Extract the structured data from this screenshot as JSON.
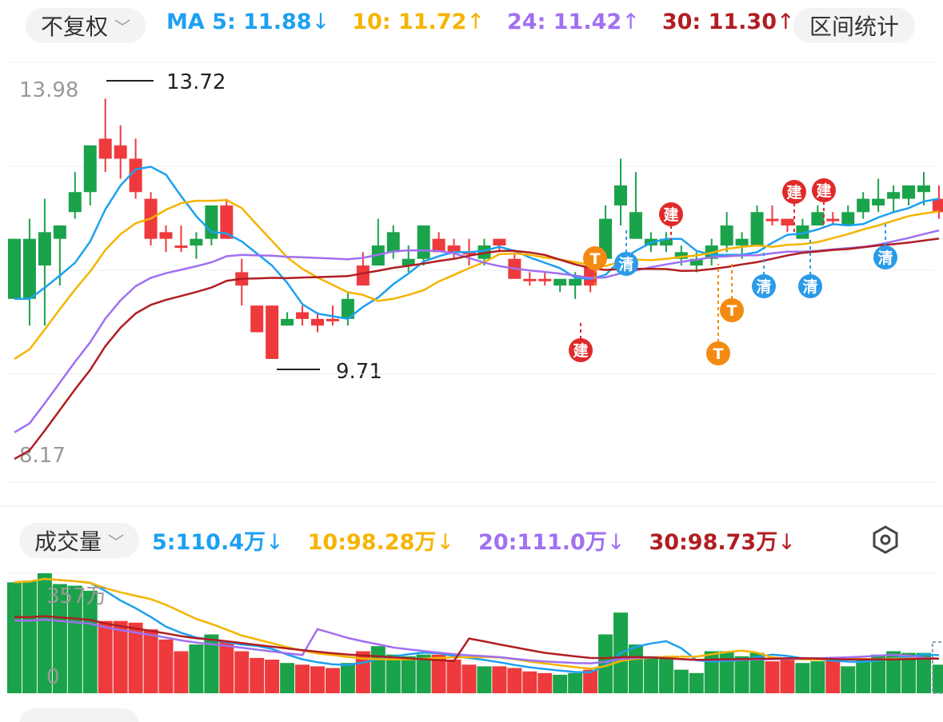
{
  "header": {
    "adjust_label": "不复权",
    "stats_label": "区间统计",
    "ma": [
      {
        "label": "MA 5: 11.88",
        "arrow": "↓",
        "color": "#1ea0f0"
      },
      {
        "label": "10: 11.72",
        "arrow": "↑",
        "color": "#f5b400"
      },
      {
        "label": "24: 11.42",
        "arrow": "↑",
        "color": "#a070f0"
      },
      {
        "label": "30: 11.30",
        "arrow": "↑",
        "color": "#b01e23"
      }
    ]
  },
  "price_chart": {
    "y_top": "13.98",
    "y_bottom": "8.17",
    "high_label": "13.72",
    "low_label": "9.71",
    "colors": {
      "up": "#ee3a3c",
      "down": "#1aa34a"
    },
    "markers": [
      {
        "type": "建",
        "color": "#e02a2a"
      },
      {
        "type": "清",
        "color": "#2b9be8"
      },
      {
        "type": "T",
        "color": "#f38a12"
      }
    ]
  },
  "volume_chart": {
    "label": "成交量",
    "y_top": "357万",
    "y_bottom": "0",
    "ma": [
      {
        "label": "5:110.4万",
        "arrow": "↓",
        "color": "#1ea0f0"
      },
      {
        "label": "10:98.28万",
        "arrow": "↓",
        "color": "#f5b400"
      },
      {
        "label": "20:111.0万",
        "arrow": "↓",
        "color": "#a070f0"
      },
      {
        "label": "30:98.73万",
        "arrow": "↓",
        "color": "#b01e23"
      }
    ]
  },
  "chart_data": {
    "type": "candlestick",
    "ylim": [
      8.17,
      13.98
    ],
    "candles": [
      [
        11.6,
        10.7,
        11.6,
        10.7
      ],
      [
        11.6,
        10.7,
        11.9,
        10.3
      ],
      [
        11.7,
        11.2,
        12.2,
        10.3
      ],
      [
        11.8,
        11.6,
        11.8,
        10.9
      ],
      [
        12.3,
        12.0,
        12.6,
        11.9
      ],
      [
        13.0,
        12.3,
        13.0,
        12.1
      ],
      [
        12.8,
        13.1,
        13.7,
        12.6
      ],
      [
        12.8,
        13.0,
        13.3,
        12.5
      ],
      [
        12.3,
        12.8,
        13.1,
        12.2
      ],
      [
        11.6,
        12.2,
        12.3,
        11.5
      ],
      [
        11.6,
        11.7,
        11.8,
        11.4
      ],
      [
        11.5,
        11.5,
        11.8,
        11.4
      ],
      [
        11.6,
        11.5,
        11.7,
        11.3
      ],
      [
        12.1,
        11.6,
        12.1,
        11.5
      ],
      [
        11.6,
        12.1,
        12.2,
        11.6
      ],
      [
        10.9,
        11.1,
        11.3,
        10.6
      ],
      [
        10.2,
        10.6,
        10.6,
        10.2
      ],
      [
        9.8,
        10.6,
        10.6,
        9.8
      ],
      [
        10.4,
        10.3,
        10.5,
        10.3
      ],
      [
        10.4,
        10.5,
        10.6,
        10.3
      ],
      [
        10.3,
        10.4,
        10.5,
        10.2
      ],
      [
        10.4,
        10.4,
        10.6,
        10.3
      ],
      [
        10.7,
        10.4,
        10.8,
        10.3
      ],
      [
        10.9,
        11.2,
        11.4,
        10.9
      ],
      [
        11.5,
        11.2,
        11.9,
        11.2
      ],
      [
        11.7,
        11.4,
        11.8,
        11.3
      ],
      [
        11.3,
        11.2,
        11.5,
        11.1
      ],
      [
        11.8,
        11.3,
        11.8,
        11.2
      ],
      [
        11.4,
        11.6,
        11.7,
        11.4
      ],
      [
        11.4,
        11.5,
        11.6,
        11.3
      ],
      [
        11.4,
        11.4,
        11.6,
        11.2
      ],
      [
        11.5,
        11.3,
        11.6,
        11.2
      ],
      [
        11.5,
        11.6,
        11.6,
        11.4
      ],
      [
        11.0,
        11.3,
        11.4,
        11.0
      ],
      [
        11.0,
        11.0,
        11.1,
        10.9
      ],
      [
        11.0,
        11.0,
        11.1,
        10.9
      ],
      [
        11.0,
        10.9,
        11.0,
        10.8
      ],
      [
        11.0,
        10.9,
        11.1,
        10.7
      ],
      [
        10.9,
        11.2,
        11.3,
        10.8
      ],
      [
        11.9,
        11.3,
        12.1,
        11.3
      ],
      [
        12.4,
        12.1,
        12.8,
        11.8
      ],
      [
        12.0,
        11.6,
        12.6,
        11.6
      ],
      [
        11.6,
        11.5,
        11.7,
        11.4
      ],
      [
        11.6,
        11.5,
        11.7,
        11.4
      ],
      [
        11.4,
        11.3,
        11.5,
        11.2
      ],
      [
        11.3,
        11.2,
        11.4,
        11.1
      ],
      [
        11.5,
        11.3,
        11.6,
        11.2
      ],
      [
        11.8,
        11.5,
        12.0,
        11.4
      ],
      [
        11.6,
        11.5,
        11.7,
        11.3
      ],
      [
        12.0,
        11.5,
        12.1,
        11.5
      ],
      [
        11.9,
        11.9,
        12.1,
        11.8
      ],
      [
        11.8,
        11.9,
        11.9,
        11.7
      ],
      [
        11.8,
        11.6,
        11.9,
        11.6
      ],
      [
        12.0,
        11.8,
        12.1,
        11.8
      ],
      [
        11.9,
        11.9,
        12.0,
        11.8
      ],
      [
        12.0,
        11.8,
        12.1,
        11.8
      ],
      [
        12.2,
        12.0,
        12.3,
        11.9
      ],
      [
        12.2,
        12.1,
        12.5,
        12.0
      ],
      [
        12.3,
        12.2,
        12.4,
        12.0
      ],
      [
        12.4,
        12.2,
        12.4,
        12.1
      ],
      [
        12.4,
        12.3,
        12.6,
        12.1
      ],
      [
        12.0,
        12.2,
        12.4,
        11.9
      ]
    ],
    "volume": [
      330,
      335,
      357,
      325,
      320,
      305,
      215,
      215,
      210,
      190,
      160,
      125,
      145,
      175,
      155,
      125,
      105,
      100,
      90,
      85,
      80,
      75,
      90,
      125,
      140,
      115,
      110,
      115,
      115,
      100,
      85,
      80,
      80,
      75,
      65,
      60,
      55,
      60,
      70,
      175,
      240,
      145,
      110,
      105,
      70,
      60,
      125,
      125,
      110,
      120,
      95,
      105,
      90,
      95,
      100,
      80,
      100,
      115,
      125,
      120,
      120,
      85
    ],
    "volume_ylim": [
      0,
      357
    ]
  }
}
